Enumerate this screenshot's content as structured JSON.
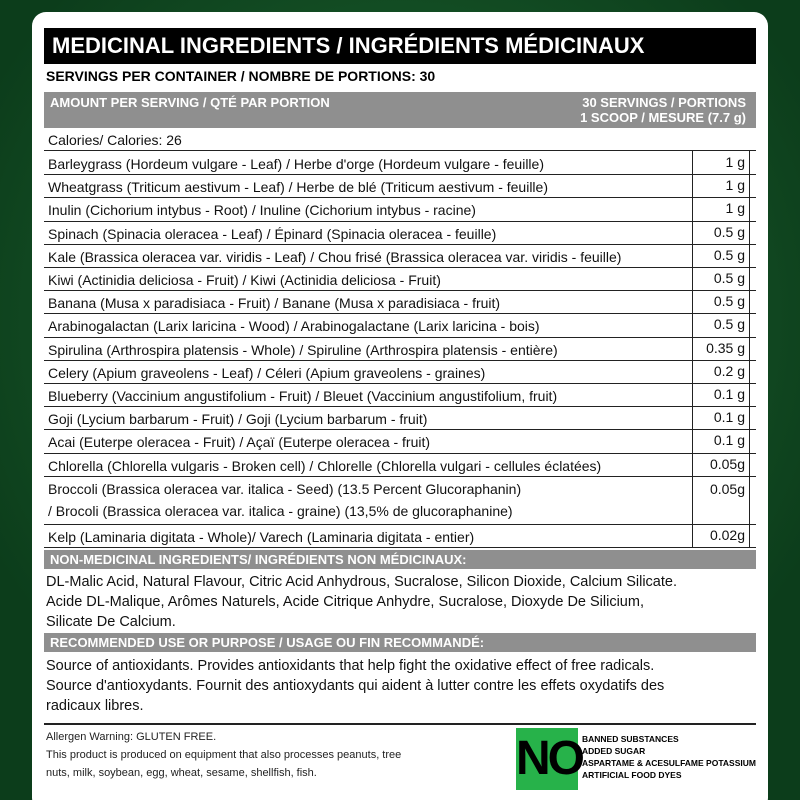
{
  "header": {
    "title": "MEDICINAL INGREDIENTS / INGRÉDIENTS MÉDICINAUX",
    "servings": "SERVINGS PER CONTAINER / NOMBRE DE PORTIONS: 30"
  },
  "amount_bar": {
    "left": "AMOUNT PER SERVING / QTÉ PAR PORTION",
    "right": [
      "30 SERVINGS / PORTIONS",
      "1 SCOOP / MESURE (7.7 g)"
    ]
  },
  "calories": "Calories/ Calories: 26",
  "ingredients": [
    {
      "name": [
        "Barleygrass (Hordeum vulgare - Leaf) / Herbe d'orge (Hordeum vulgare - feuille)"
      ],
      "amount": "1 g"
    },
    {
      "name": [
        "Wheatgrass (Triticum aestivum - Leaf) / Herbe de blé (Triticum aestivum - feuille)"
      ],
      "amount": "1 g"
    },
    {
      "name": [
        "Inulin (Cichorium intybus - Root) / Inuline (Cichorium intybus - racine)"
      ],
      "amount": "1 g"
    },
    {
      "name": [
        "Spinach (Spinacia oleracea - Leaf) / Épinard (Spinacia oleracea - feuille)"
      ],
      "amount": "0.5 g"
    },
    {
      "name": [
        "Kale (Brassica oleracea var. viridis - Leaf) / Chou frisé (Brassica oleracea var. viridis - feuille)"
      ],
      "amount": "0.5 g"
    },
    {
      "name": [
        "Kiwi (Actinidia deliciosa - Fruit) / Kiwi (Actinidia deliciosa - Fruit)"
      ],
      "amount": "0.5 g"
    },
    {
      "name": [
        "Banana (Musa x paradisiaca - Fruit) / Banane (Musa x paradisiaca - fruit)"
      ],
      "amount": "0.5 g"
    },
    {
      "name": [
        "Arabinogalactan (Larix laricina - Wood) / Arabinogalactane (Larix laricina - bois)"
      ],
      "amount": "0.5 g"
    },
    {
      "name": [
        "Spirulina (Arthrospira platensis - Whole) / Spiruline (Arthrospira platensis - entière)"
      ],
      "amount": "0.35 g"
    },
    {
      "name": [
        "Celery (Apium graveolens - Leaf) / Céleri (Apium graveolens - graines)"
      ],
      "amount": "0.2 g"
    },
    {
      "name": [
        "Blueberry (Vaccinium angustifolium - Fruit) / Bleuet (Vaccinium angustifolium, fruit)"
      ],
      "amount": "0.1 g"
    },
    {
      "name": [
        "Goji (Lycium barbarum - Fruit) / Goji (Lycium barbarum - fruit)"
      ],
      "amount": "0.1 g"
    },
    {
      "name": [
        "Acai (Euterpe oleracea - Fruit) / Açaï (Euterpe oleracea - fruit)"
      ],
      "amount": "0.1 g"
    },
    {
      "name": [
        "Chlorella (Chlorella vulgaris - Broken cell) / Chlorelle (Chlorella vulgari - cellules éclatées)"
      ],
      "amount": "0.05g"
    },
    {
      "name": [
        "Broccoli (Brassica oleracea var. italica - Seed) (13.5 Percent Glucoraphanin)",
        "/ Brocoli (Brassica oleracea var. italica - graine) (13,5% de glucoraphanine)"
      ],
      "amount": "0.05g"
    },
    {
      "name": [
        "Kelp (Laminaria digitata - Whole)/ Varech (Laminaria digitata - entier)"
      ],
      "amount": "0.02g"
    }
  ],
  "non_medicinal": {
    "title": "NON-MEDICINAL INGREDIENTS/ INGRÉDIENTS NON MÉDICINAUX:",
    "lines": [
      "DL-Malic Acid, Natural Flavour, Citric Acid Anhydrous, Sucralose, Silicon Dioxide, Calcium Silicate.",
      "Acide DL-Malique, Arômes Naturels, Acide Citrique Anhydre, Sucralose, Dioxyde De Silicium,",
      "Silicate De Calcium."
    ]
  },
  "recommended": {
    "title": "RECOMMENDED USE OR PURPOSE / USAGE OU FIN RECOMMANDÉ:",
    "lines": [
      "Source of antioxidants. Provides antioxidants that help fight the oxidative effect of free radicals.",
      "Source d'antioxydants. Fournit des antioxydants qui aident à lutter contre les effets oxydatifs des",
      "radicaux libres."
    ]
  },
  "allergen": {
    "lines": [
      "Allergen Warning: GLUTEN FREE.",
      "This product is produced on equipment that also processes peanuts, tree",
      "nuts, milk, soybean, egg, wheat, sesame, shellfish, fish."
    ]
  },
  "badge": {
    "big": "NO",
    "items": [
      "BANNED SUBSTANCES",
      "ADDED SUGAR",
      "ASPARTAME & ACESULFAME POTASSIUM",
      "ARTIFICIAL FOOD DYES"
    ]
  }
}
